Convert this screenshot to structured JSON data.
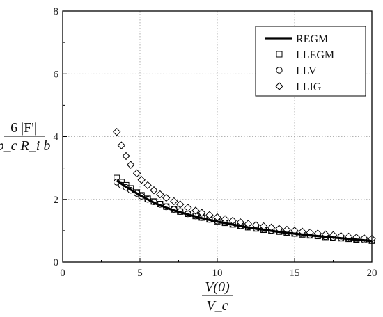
{
  "chart_data": {
    "type": "scatter",
    "xlabel": {
      "numerator": "V(0)",
      "denominator": "V_c"
    },
    "ylabel": {
      "numerator": "6 |F'|",
      "denominator": "p_c R_i b"
    },
    "xlim": [
      0,
      20
    ],
    "ylim": [
      0,
      8
    ],
    "x_ticks": [
      "0",
      "5",
      "10",
      "15",
      "20"
    ],
    "y_ticks": [
      "0",
      "2",
      "4",
      "6",
      "8"
    ],
    "grid": true,
    "legend_position": "top-right",
    "series": [
      {
        "name": "REGM",
        "style": "line",
        "x": [
          3.5,
          4,
          5,
          6,
          7,
          8,
          9,
          10,
          12,
          14,
          16,
          18,
          20
        ],
        "y": [
          2.6,
          2.43,
          2.13,
          1.87,
          1.68,
          1.53,
          1.4,
          1.29,
          1.1,
          0.96,
          0.85,
          0.76,
          0.67
        ]
      },
      {
        "name": "LLEGM",
        "style": "square",
        "x": [
          3.5,
          3.8,
          4.1,
          4.4,
          4.8,
          5.1,
          5.5,
          5.9,
          6.3,
          6.7,
          7.2,
          7.6,
          8.1,
          8.6,
          9.0,
          9.5,
          10.0,
          10.5,
          11.0,
          11.5,
          12.0,
          12.5,
          13.0,
          13.5,
          14.0,
          14.5,
          15.0,
          15.5,
          16.0,
          16.5,
          17.0,
          17.5,
          18.0,
          18.5,
          19.0,
          19.5,
          20.0
        ],
        "y": [
          2.68,
          2.55,
          2.45,
          2.35,
          2.22,
          2.13,
          2.02,
          1.93,
          1.85,
          1.77,
          1.68,
          1.61,
          1.54,
          1.47,
          1.42,
          1.36,
          1.3,
          1.25,
          1.2,
          1.16,
          1.11,
          1.07,
          1.03,
          1.0,
          0.97,
          0.94,
          0.91,
          0.88,
          0.85,
          0.83,
          0.8,
          0.78,
          0.76,
          0.74,
          0.72,
          0.7,
          0.68
        ]
      },
      {
        "name": "LLV",
        "style": "circle",
        "x": [
          3.5,
          3.8,
          4.1,
          4.4,
          4.8,
          5.1,
          5.5,
          5.9,
          6.3,
          6.7,
          7.2,
          7.6,
          8.1,
          8.6,
          9.0,
          9.5,
          10.0,
          10.5,
          11.0,
          11.5,
          12.0,
          12.5,
          13.0,
          13.5,
          14.0,
          14.5,
          15.0,
          15.5,
          16.0,
          16.5,
          17.0,
          17.5,
          18.0,
          18.5,
          19.0,
          19.5,
          20.0
        ],
        "y": [
          2.55,
          2.45,
          2.38,
          2.29,
          2.19,
          2.1,
          2.0,
          1.92,
          1.84,
          1.76,
          1.68,
          1.61,
          1.54,
          1.47,
          1.42,
          1.36,
          1.31,
          1.26,
          1.21,
          1.16,
          1.12,
          1.08,
          1.04,
          1.01,
          0.98,
          0.95,
          0.92,
          0.89,
          0.86,
          0.84,
          0.81,
          0.79,
          0.77,
          0.75,
          0.73,
          0.71,
          0.69
        ]
      },
      {
        "name": "LLIG",
        "style": "diamond",
        "x": [
          3.5,
          3.8,
          4.1,
          4.4,
          4.8,
          5.1,
          5.5,
          5.9,
          6.3,
          6.7,
          7.2,
          7.6,
          8.1,
          8.6,
          9.0,
          9.5,
          10.0,
          10.5,
          11.0,
          11.5,
          12.0,
          12.5,
          13.0,
          13.5,
          14.0,
          14.5,
          15.0,
          15.5,
          16.0,
          16.5,
          17.0,
          17.5,
          18.0,
          18.5,
          19.0,
          19.5,
          20.0
        ],
        "y": [
          4.15,
          3.72,
          3.38,
          3.1,
          2.83,
          2.62,
          2.45,
          2.29,
          2.16,
          2.05,
          1.94,
          1.84,
          1.73,
          1.64,
          1.57,
          1.5,
          1.43,
          1.37,
          1.32,
          1.27,
          1.22,
          1.18,
          1.14,
          1.1,
          1.06,
          1.03,
          1.0,
          0.97,
          0.94,
          0.91,
          0.88,
          0.86,
          0.83,
          0.81,
          0.78,
          0.76,
          0.74
        ]
      }
    ]
  }
}
